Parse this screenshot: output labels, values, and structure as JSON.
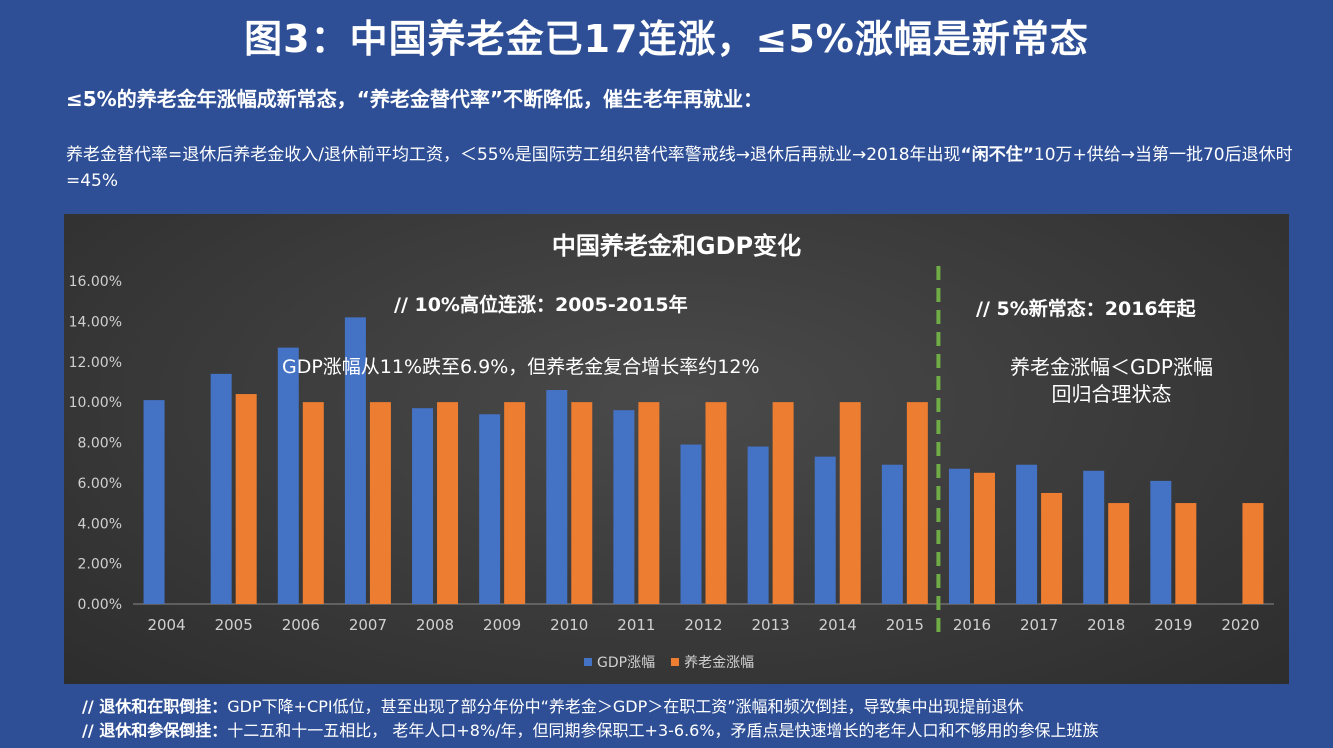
{
  "title": "图3：中国养老金已17连涨，≤5%涨幅是新常态",
  "subtitle": "≤5%的养老金年涨幅成新常态，“养老金替代率”不断降低，催生老年再就业：",
  "desc": {
    "text1": "养老金替代率=退休后养老金收入/退休前平均工资，＜55%是国际劳工组织替代率警戒线→退休后再就业→2018年出现",
    "bold": "“闲不住”",
    "text2": "10万+供给→当第一批70后退休时=45%"
  },
  "annotations": {
    "left_header": "//  10%高位连涨：2005-2015年",
    "left_body": "GDP涨幅从11%跌至6.9%，但养老金复合增长率约12%",
    "right_header": "//  5%新常态：2016年起",
    "right_body_1": "养老金涨幅＜GDP涨幅",
    "right_body_2": "回归合理状态"
  },
  "bottom": {
    "line1_label": "//  退休和在职倒挂：",
    "line1_text": "GDP下降+CPI低位，甚至出现了部分年份中“养老金＞GDP＞在职工资”涨幅和频次倒挂，导致集中出现提前退休",
    "line2_label": "//  退休和参保倒挂：",
    "line2_text": "十二五和十一五相比， 老年人口+8%/年，但同期参保职工+3-6.6%，矛盾点是快速增长的老年人口和不够用的参保上班族"
  },
  "colors": {
    "gdp": "#4472c4",
    "pension": "#ed7d31",
    "divider": "#70ad47",
    "arrow": "#2fa84f"
  },
  "icons": {
    "arrow": "down-arrow-icon"
  },
  "chart_data": {
    "type": "bar",
    "title": "中国养老金和GDP变化",
    "categories": [
      "2004",
      "2005",
      "2006",
      "2007",
      "2008",
      "2009",
      "2010",
      "2011",
      "2012",
      "2013",
      "2014",
      "2015",
      "2016",
      "2017",
      "2018",
      "2019",
      "2020"
    ],
    "series": [
      {
        "name": "GDP涨幅",
        "values": [
          10.1,
          11.4,
          12.7,
          14.2,
          9.7,
          9.4,
          10.6,
          9.6,
          7.9,
          7.8,
          7.3,
          6.9,
          6.7,
          6.9,
          6.6,
          6.1,
          null
        ]
      },
      {
        "name": "养老金涨幅",
        "values": [
          null,
          10.4,
          10.0,
          10.0,
          10.0,
          10.0,
          10.0,
          10.0,
          10.0,
          10.0,
          10.0,
          10.0,
          6.5,
          5.5,
          5.0,
          5.0,
          5.0
        ]
      }
    ],
    "y_ticks": [
      "0.00%",
      "2.00%",
      "4.00%",
      "6.00%",
      "8.00%",
      "10.00%",
      "12.00%",
      "14.00%",
      "16.00%"
    ],
    "ylim": [
      0,
      16
    ],
    "legend": "bottom",
    "grid": false
  }
}
